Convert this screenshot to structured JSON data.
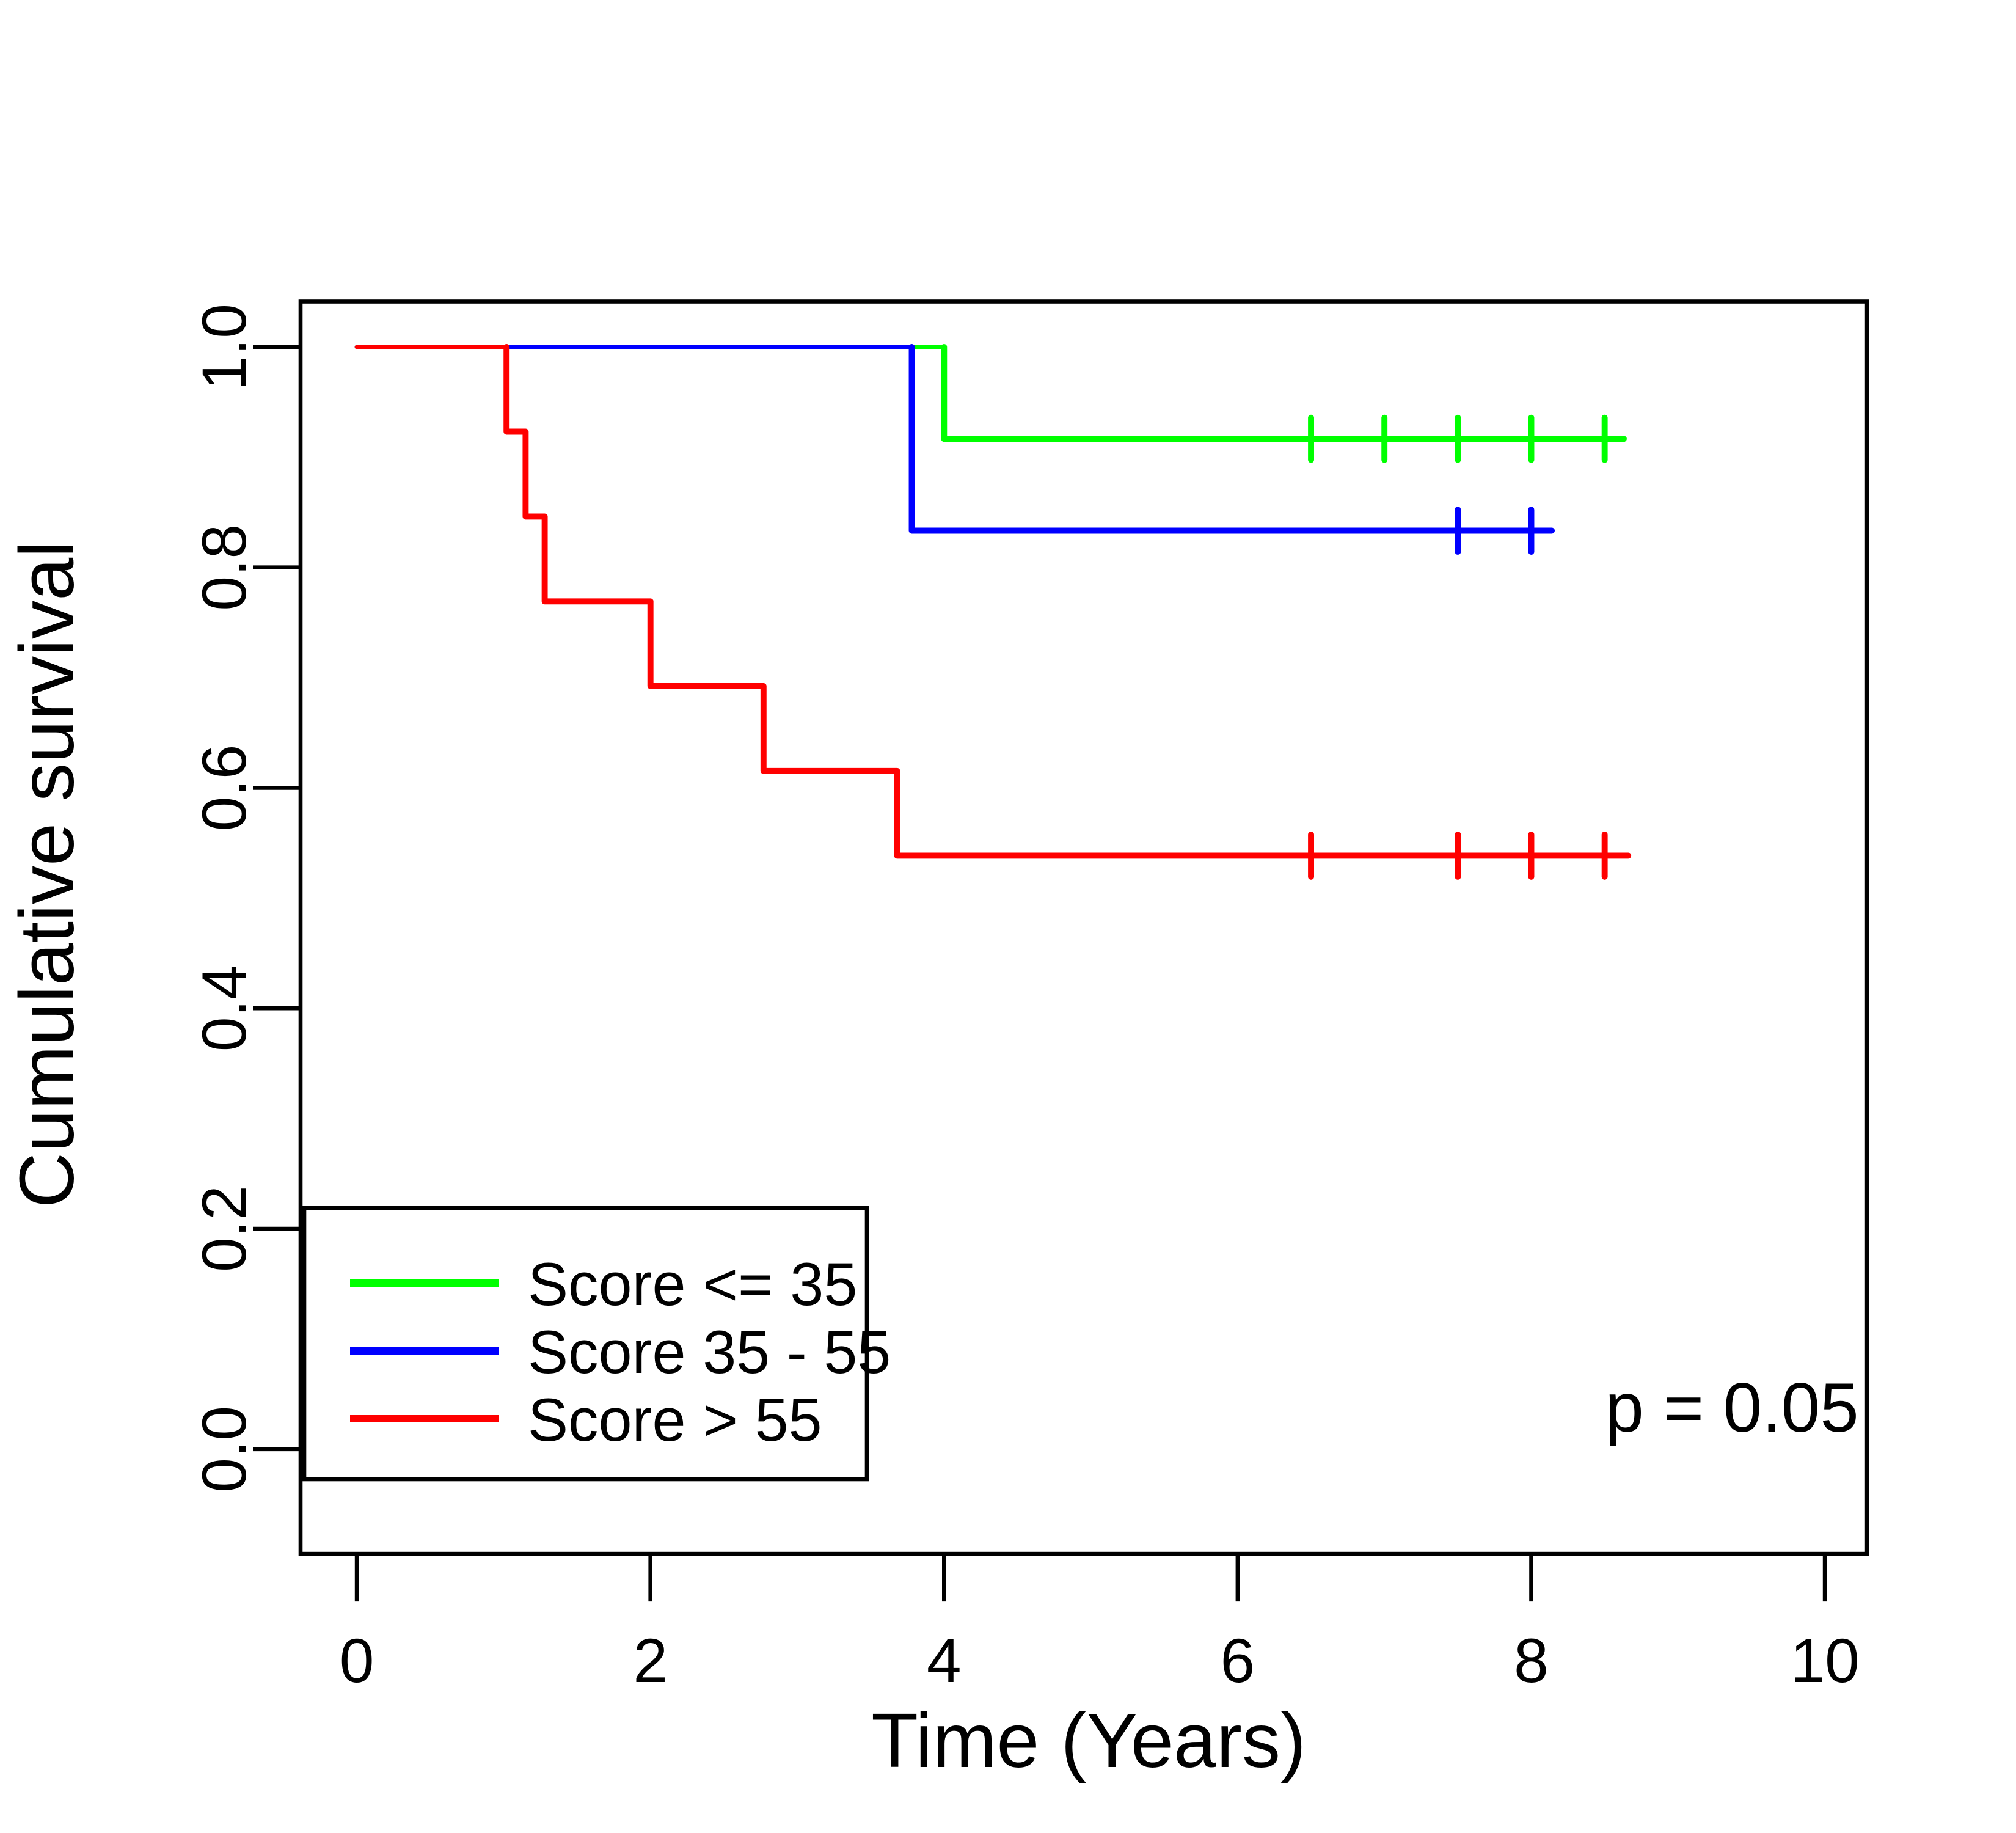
{
  "figure": {
    "background": "#ffffff"
  },
  "chart_data": {
    "type": "line",
    "subtype": "kaplan-meier-step",
    "title": "",
    "xlabel": "Time (Years)",
    "ylabel": "Cumulative survival",
    "xlim": [
      0,
      10
    ],
    "ylim": [
      0,
      1
    ],
    "grid": false,
    "legend_position": "bottom-left",
    "x_ticks": {
      "values": [
        0,
        2,
        4,
        6,
        8,
        10
      ],
      "labels": [
        "0",
        "2",
        "4",
        "6",
        "8",
        "10"
      ]
    },
    "y_ticks": {
      "values": [
        0,
        0.2,
        0.4,
        0.6,
        0.8,
        1
      ],
      "labels": [
        "0.0",
        "0.2",
        "0.4",
        "0.6",
        "0.8",
        "1.0"
      ]
    },
    "annotation": {
      "text": "p = 0.05",
      "x": 9.37,
      "y": 0.038
    },
    "axis_color": "#000000",
    "series": [
      {
        "name": "Score <= 35",
        "color": "#00ff00",
        "steps": [
          [
            0,
            1
          ],
          [
            4,
            1
          ],
          [
            4,
            0.9167
          ],
          [
            8.63,
            0.9167
          ]
        ],
        "censors": [
          [
            6.5,
            0.9167
          ],
          [
            7,
            0.9167
          ],
          [
            7.5,
            0.9167
          ],
          [
            8,
            0.9167
          ],
          [
            8.5,
            0.9167
          ]
        ]
      },
      {
        "name": "Score 35 - 55",
        "color": "#0000ff",
        "steps": [
          [
            0,
            1
          ],
          [
            3.78,
            1
          ],
          [
            3.78,
            0.8333
          ],
          [
            8.14,
            0.8333
          ]
        ],
        "censors": [
          [
            7.5,
            0.8333
          ],
          [
            8,
            0.8333
          ]
        ]
      },
      {
        "name": "Score > 55",
        "color": "#ff0000",
        "steps": [
          [
            0,
            1
          ],
          [
            1.02,
            1
          ],
          [
            1.02,
            0.9231
          ],
          [
            1.15,
            0.9231
          ],
          [
            1.15,
            0.8462
          ],
          [
            1.28,
            0.8462
          ],
          [
            1.28,
            0.7692
          ],
          [
            2,
            0.7692
          ],
          [
            2,
            0.6923
          ],
          [
            2.77,
            0.6923
          ],
          [
            2.77,
            0.6154
          ],
          [
            3.68,
            0.6154
          ],
          [
            3.68,
            0.5385
          ],
          [
            8.66,
            0.5385
          ]
        ],
        "censors": [
          [
            6.5,
            0.5385
          ],
          [
            7.5,
            0.5385
          ],
          [
            8,
            0.5385
          ],
          [
            8.5,
            0.5385
          ]
        ]
      }
    ]
  }
}
